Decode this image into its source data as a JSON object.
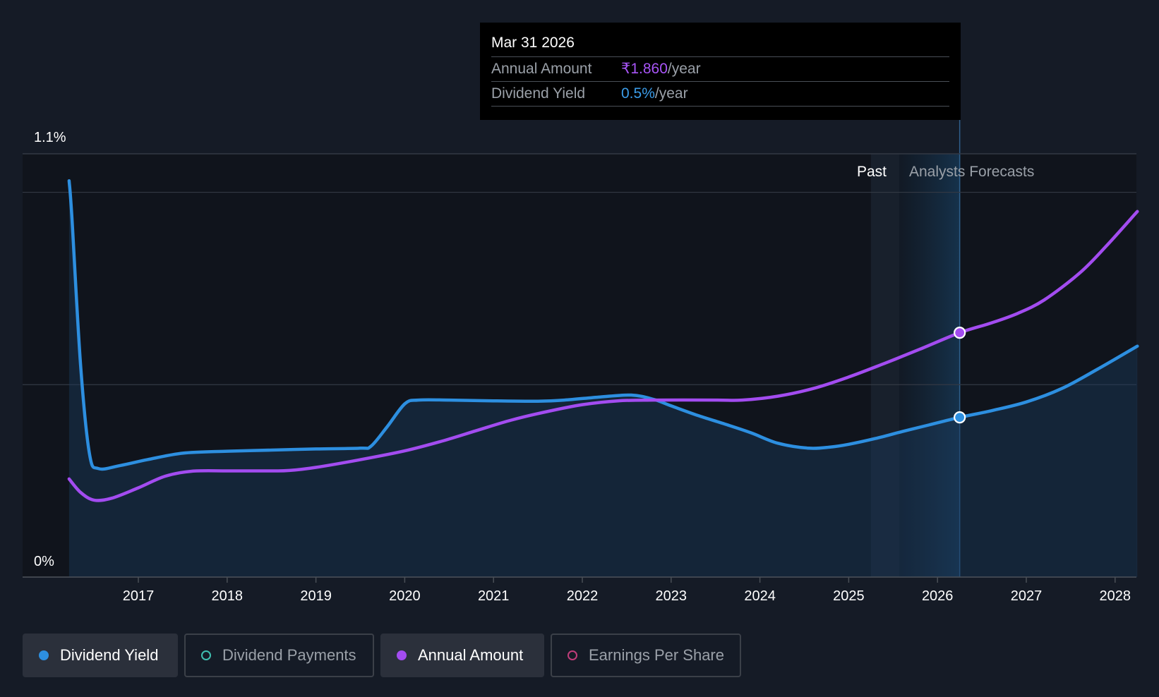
{
  "chart_data": {
    "type": "line",
    "y_axis": {
      "min": 0,
      "max": 1.1,
      "unit": "%",
      "tick_labels": [
        "1.1%",
        "0%"
      ]
    },
    "x_axis": {
      "min": 2016.2,
      "max": 2028.25,
      "ticks": [
        2017,
        2018,
        2019,
        2020,
        2021,
        2022,
        2023,
        2024,
        2025,
        2026,
        2027,
        2028
      ]
    },
    "regions": {
      "past_label": "Past",
      "forecast_label": "Analysts Forecasts",
      "past_end": 2025.25,
      "forecast_start": 2025.57,
      "marker_x": 2026.25
    },
    "series": [
      {
        "name": "Dividend Yield",
        "color": "#2d8fe0",
        "area": true,
        "points": [
          [
            2016.22,
            1.03
          ],
          [
            2016.25,
            0.94
          ],
          [
            2016.35,
            0.55
          ],
          [
            2016.45,
            0.32
          ],
          [
            2016.55,
            0.282
          ],
          [
            2016.8,
            0.29
          ],
          [
            2017.1,
            0.305
          ],
          [
            2017.5,
            0.322
          ],
          [
            2018.0,
            0.327
          ],
          [
            2018.5,
            0.33
          ],
          [
            2019.0,
            0.333
          ],
          [
            2019.5,
            0.335
          ],
          [
            2019.62,
            0.34
          ],
          [
            2019.8,
            0.39
          ],
          [
            2020.0,
            0.45
          ],
          [
            2020.15,
            0.46
          ],
          [
            2020.5,
            0.46
          ],
          [
            2021.0,
            0.458
          ],
          [
            2021.5,
            0.457
          ],
          [
            2021.8,
            0.46
          ],
          [
            2022.2,
            0.468
          ],
          [
            2022.55,
            0.473
          ],
          [
            2022.8,
            0.462
          ],
          [
            2023.0,
            0.445
          ],
          [
            2023.3,
            0.42
          ],
          [
            2023.6,
            0.398
          ],
          [
            2023.9,
            0.375
          ],
          [
            2024.2,
            0.348
          ],
          [
            2024.55,
            0.335
          ],
          [
            2024.8,
            0.338
          ],
          [
            2025.0,
            0.345
          ],
          [
            2025.3,
            0.36
          ],
          [
            2025.6,
            0.378
          ],
          [
            2025.9,
            0.395
          ],
          [
            2026.25,
            0.415
          ],
          [
            2026.6,
            0.432
          ],
          [
            2027.0,
            0.455
          ],
          [
            2027.4,
            0.49
          ],
          [
            2027.8,
            0.54
          ],
          [
            2028.25,
            0.6
          ]
        ]
      },
      {
        "name": "Annual Amount",
        "color": "#a34cf0",
        "area": false,
        "points": [
          [
            2016.22,
            0.255
          ],
          [
            2016.35,
            0.22
          ],
          [
            2016.5,
            0.2
          ],
          [
            2016.7,
            0.205
          ],
          [
            2017.0,
            0.232
          ],
          [
            2017.3,
            0.262
          ],
          [
            2017.6,
            0.275
          ],
          [
            2018.0,
            0.276
          ],
          [
            2018.5,
            0.276
          ],
          [
            2018.7,
            0.277
          ],
          [
            2019.0,
            0.285
          ],
          [
            2019.5,
            0.305
          ],
          [
            2020.0,
            0.328
          ],
          [
            2020.4,
            0.352
          ],
          [
            2020.8,
            0.38
          ],
          [
            2021.2,
            0.408
          ],
          [
            2021.6,
            0.43
          ],
          [
            2022.0,
            0.448
          ],
          [
            2022.4,
            0.458
          ],
          [
            2022.8,
            0.46
          ],
          [
            2023.5,
            0.46
          ],
          [
            2023.8,
            0.46
          ],
          [
            2024.2,
            0.47
          ],
          [
            2024.6,
            0.49
          ],
          [
            2025.0,
            0.52
          ],
          [
            2025.4,
            0.555
          ],
          [
            2025.8,
            0.592
          ],
          [
            2026.25,
            0.635
          ],
          [
            2026.6,
            0.66
          ],
          [
            2026.9,
            0.685
          ],
          [
            2027.2,
            0.72
          ],
          [
            2027.6,
            0.79
          ],
          [
            2027.9,
            0.86
          ],
          [
            2028.25,
            0.95
          ]
        ]
      }
    ],
    "markers": [
      {
        "series": "Annual Amount",
        "x": 2026.25,
        "y": 0.635
      },
      {
        "series": "Dividend Yield",
        "x": 2026.25,
        "y": 0.415
      }
    ],
    "grid_lines": [
      1.1,
      1.0,
      0.5,
      0
    ]
  },
  "tooltip": {
    "date": "Mar 31 2026",
    "annual_amount_label": "Annual Amount",
    "annual_amount_value": "₹1.860",
    "annual_amount_unit": "/year",
    "dividend_yield_label": "Dividend Yield",
    "dividend_yield_value": "0.5%",
    "dividend_yield_unit": "/year"
  },
  "legend": {
    "items": [
      {
        "label": "Dividend Yield",
        "color": "#2d8fe0",
        "active": true
      },
      {
        "label": "Dividend Payments",
        "color": "#3fbfb0",
        "active": false
      },
      {
        "label": "Annual Amount",
        "color": "#a34cf0",
        "active": true
      },
      {
        "label": "Earnings Per Share",
        "color": "#c03d7a",
        "active": false
      }
    ]
  }
}
